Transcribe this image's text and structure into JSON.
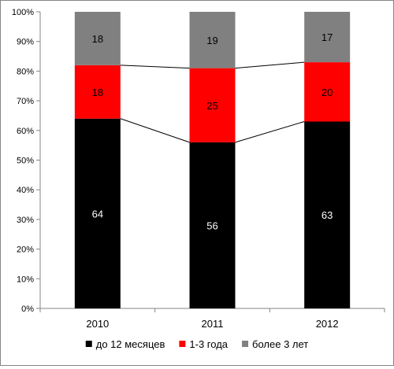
{
  "chart_data": {
    "type": "bar",
    "stacked": "percent",
    "categories": [
      "2010",
      "2011",
      "2012"
    ],
    "series": [
      {
        "name": "до 12 месяцев",
        "values": [
          64,
          56,
          63
        ],
        "color": "#000000",
        "label_color": "#ffffff"
      },
      {
        "name": "1-3 года",
        "values": [
          18,
          25,
          20
        ],
        "color": "#ff0000",
        "label_color": "#000000"
      },
      {
        "name": "более 3 лет",
        "values": [
          18,
          19,
          17
        ],
        "color": "#808080",
        "label_color": "#000000"
      }
    ],
    "y_ticks": [
      "0%",
      "10%",
      "20%",
      "30%",
      "40%",
      "50%",
      "60%",
      "70%",
      "80%",
      "90%",
      "100%"
    ],
    "ylim": [
      0,
      100
    ],
    "series_lines": true,
    "legend_position": "bottom",
    "grid": false
  }
}
